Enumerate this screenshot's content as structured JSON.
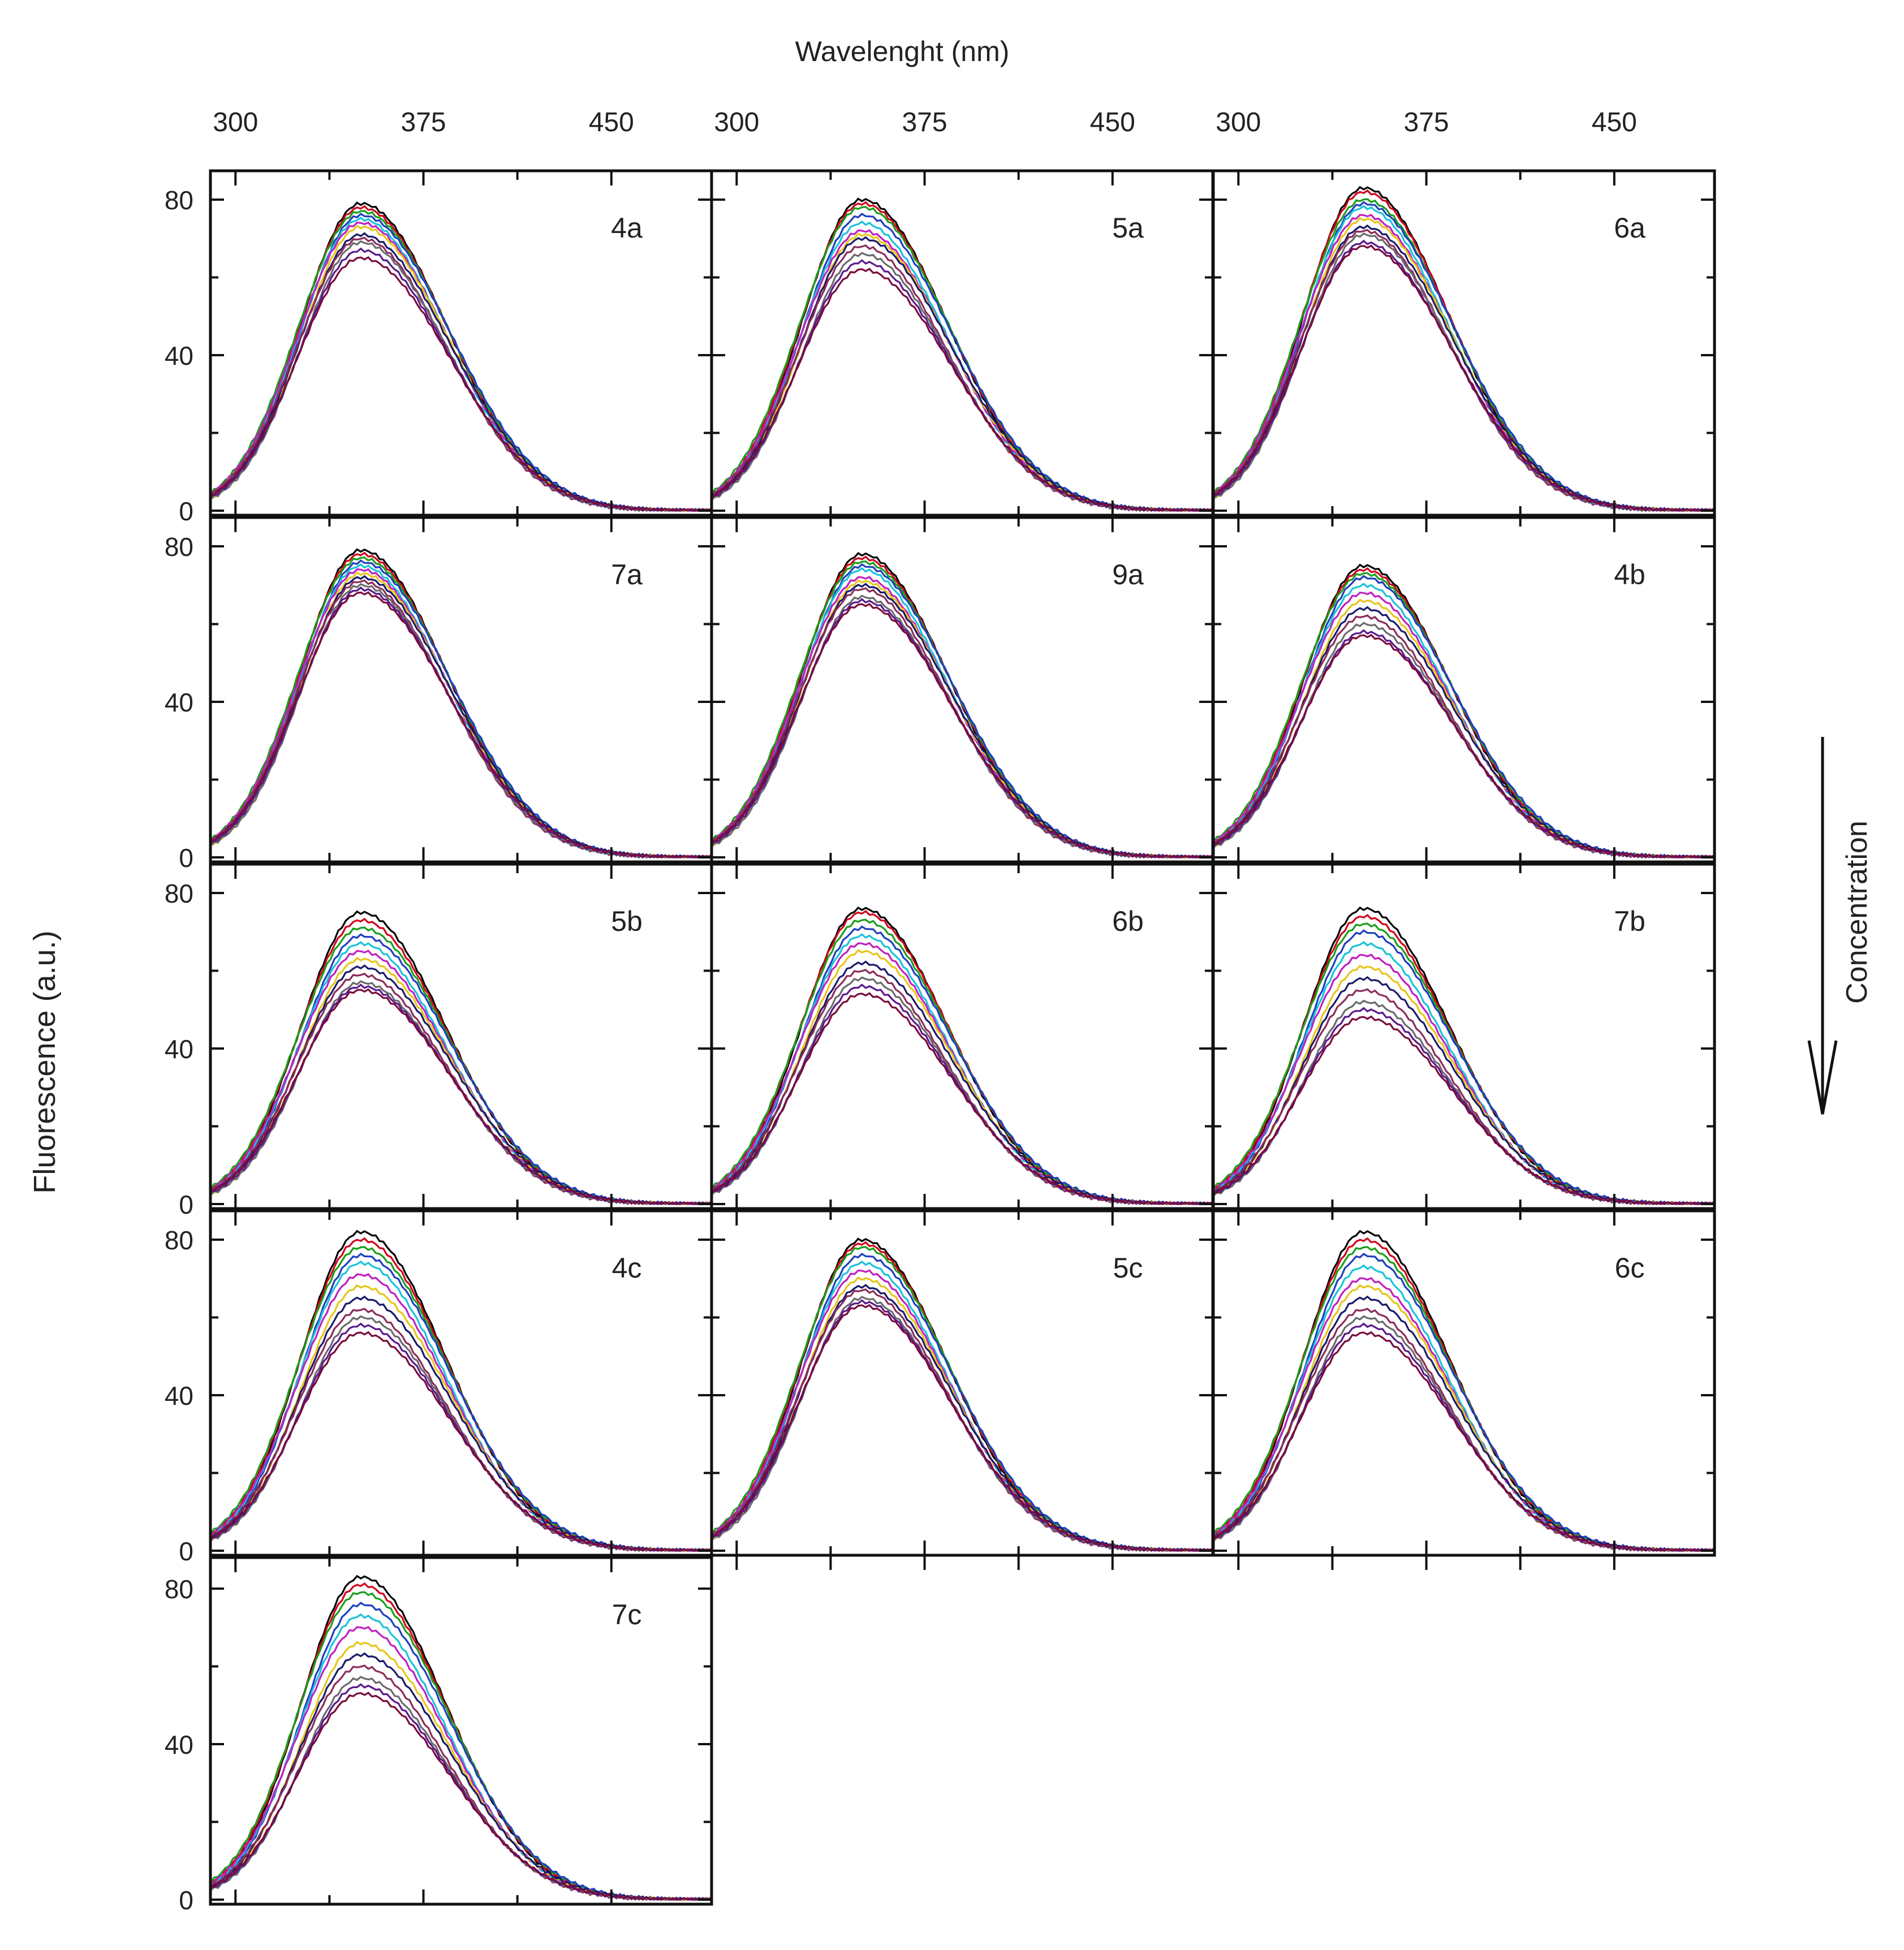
{
  "chart_data": {
    "type": "line",
    "layout": "grid",
    "x_axis_title": "Wavelenght (nm)",
    "y_axis_title": "Fluorescence (a.u.)",
    "annotation": "Concentration",
    "xlim": [
      290,
      490
    ],
    "ylim": [
      0,
      86
    ],
    "x_ticks": [
      300,
      375,
      450
    ],
    "y_ticks": [
      0,
      40,
      80
    ],
    "series_colors": [
      "#000000",
      "#d0021b",
      "#1a9e1a",
      "#1f3fbf",
      "#19c3d9",
      "#c020c0",
      "#e6c619",
      "#1a1a6b",
      "#8b2c5a",
      "#6b6b6b",
      "#5a1a8b",
      "#7a0a3c"
    ],
    "peak_wavelength_nm": 350,
    "panels": [
      {
        "label": "4a",
        "peaks": [
          79,
          78,
          77,
          76,
          75,
          74,
          73,
          71,
          70,
          69,
          67,
          65
        ]
      },
      {
        "label": "5a",
        "peaks": [
          80,
          79,
          78,
          76,
          74,
          72,
          71,
          70,
          68,
          66,
          64,
          62
        ]
      },
      {
        "label": "6a",
        "peaks": [
          83,
          82,
          80,
          79,
          78,
          76,
          75,
          73,
          72,
          71,
          69,
          68
        ]
      },
      {
        "label": "7a",
        "peaks": [
          79,
          78,
          77,
          76,
          75,
          74,
          73,
          72,
          71,
          70,
          69,
          68
        ]
      },
      {
        "label": "9a",
        "peaks": [
          78,
          77,
          76,
          75,
          74,
          72,
          71,
          70,
          69,
          67,
          66,
          65
        ]
      },
      {
        "label": "4b",
        "peaks": [
          75,
          74,
          73,
          72,
          70,
          68,
          66,
          64,
          62,
          60,
          58,
          57
        ]
      },
      {
        "label": "5b",
        "peaks": [
          75,
          73,
          71,
          69,
          67,
          65,
          63,
          61,
          59,
          57,
          56,
          55
        ]
      },
      {
        "label": "6b",
        "peaks": [
          76,
          75,
          73,
          71,
          69,
          67,
          65,
          62,
          60,
          58,
          56,
          54
        ]
      },
      {
        "label": "7b",
        "peaks": [
          76,
          74,
          72,
          70,
          67,
          64,
          61,
          58,
          55,
          52,
          50,
          48
        ]
      },
      {
        "label": "4c",
        "peaks": [
          82,
          80,
          78,
          76,
          74,
          71,
          68,
          65,
          62,
          60,
          58,
          56
        ]
      },
      {
        "label": "5c",
        "peaks": [
          80,
          79,
          78,
          76,
          74,
          72,
          70,
          68,
          67,
          65,
          64,
          63
        ]
      },
      {
        "label": "6c",
        "peaks": [
          82,
          80,
          78,
          76,
          73,
          70,
          68,
          65,
          62,
          60,
          58,
          56
        ]
      },
      {
        "label": "7c",
        "peaks": [
          83,
          81,
          79,
          76,
          73,
          70,
          66,
          63,
          60,
          57,
          55,
          53
        ]
      }
    ]
  }
}
